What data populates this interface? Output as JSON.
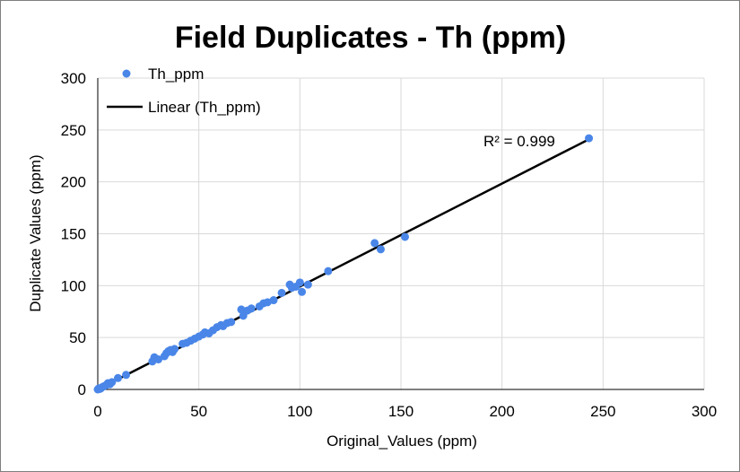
{
  "chart_data": {
    "type": "scatter",
    "title": "Field Duplicates  - Th (ppm)",
    "xlabel": "Original_Values (ppm)",
    "ylabel": "Duplicate Values (ppm)",
    "xlim": [
      0,
      300
    ],
    "ylim": [
      0,
      300
    ],
    "x_ticks": [
      0,
      50,
      100,
      150,
      200,
      250,
      300
    ],
    "y_ticks": [
      0,
      50,
      100,
      150,
      200,
      250,
      300
    ],
    "grid": true,
    "legend_placement": "top-left",
    "series": [
      {
        "name": "Th_ppm",
        "color": "#4a86e8",
        "x": [
          0,
          0.5,
          1,
          1.5,
          2,
          3,
          4,
          5,
          6,
          7,
          10,
          14,
          27,
          28,
          30,
          33,
          34,
          35,
          36,
          37,
          38,
          42,
          44,
          46,
          48,
          50,
          52,
          53,
          55,
          57,
          59,
          61,
          62,
          64,
          66,
          71,
          72,
          74,
          76,
          80,
          82,
          84,
          87,
          91,
          95,
          96,
          98,
          100,
          101,
          104,
          114,
          137,
          140,
          152,
          243
        ],
        "y": [
          0,
          1,
          0.5,
          1,
          2,
          3,
          4,
          6,
          5,
          7,
          11,
          14,
          27,
          31,
          29,
          32,
          35,
          37,
          38,
          36,
          39,
          44,
          45,
          47,
          49,
          51,
          53,
          55,
          54,
          57,
          60,
          62,
          61,
          64,
          65,
          77,
          71,
          76,
          78,
          80,
          83,
          84,
          86,
          93,
          101,
          98,
          99,
          103,
          94,
          101,
          114,
          141,
          135,
          147,
          242
        ]
      }
    ],
    "trendline": {
      "name": "Linear (Th_ppm)",
      "color": "#000000",
      "x": [
        0,
        243
      ],
      "y": [
        0,
        241
      ],
      "r2_label": "R² = 0.999"
    }
  }
}
